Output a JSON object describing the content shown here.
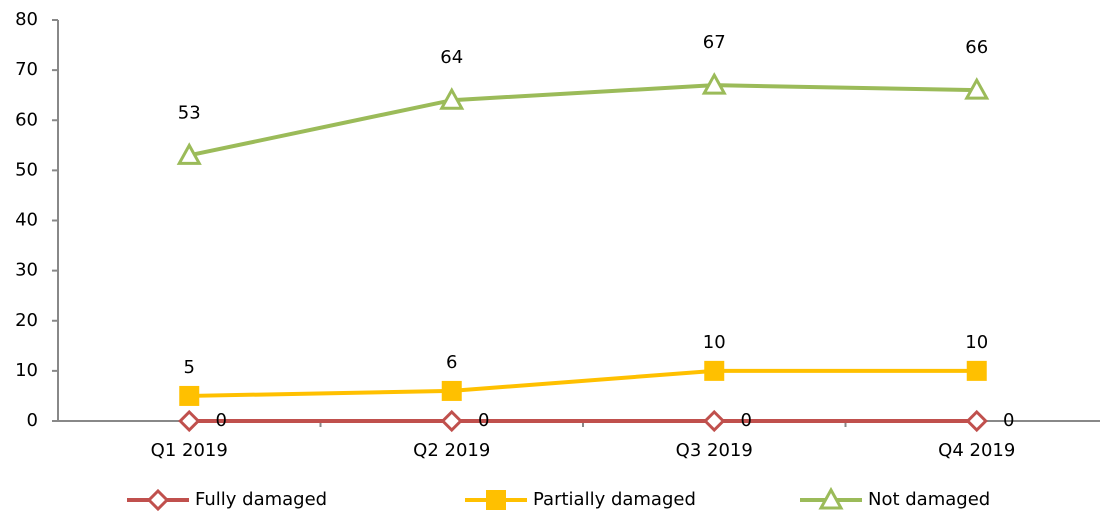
{
  "chart_data": {
    "type": "line",
    "categories": [
      "Q1 2019",
      "Q2 2019",
      "Q3 2019",
      "Q4 2019"
    ],
    "series": [
      {
        "name": "Fully damaged",
        "color": "#c0504d",
        "marker": "diamond",
        "values": [
          0,
          0,
          0,
          0
        ]
      },
      {
        "name": "Partially damaged",
        "color": "#ffc000",
        "marker": "square",
        "values": [
          5,
          6,
          10,
          10
        ]
      },
      {
        "name": "Not damaged",
        "color": "#9bbb59",
        "marker": "triangle",
        "values": [
          53,
          64,
          67,
          66
        ]
      }
    ],
    "ylim": [
      0,
      80
    ],
    "yticks": [
      0,
      10,
      20,
      30,
      40,
      50,
      60,
      70,
      80
    ],
    "grid": false,
    "legend": "bottom"
  }
}
